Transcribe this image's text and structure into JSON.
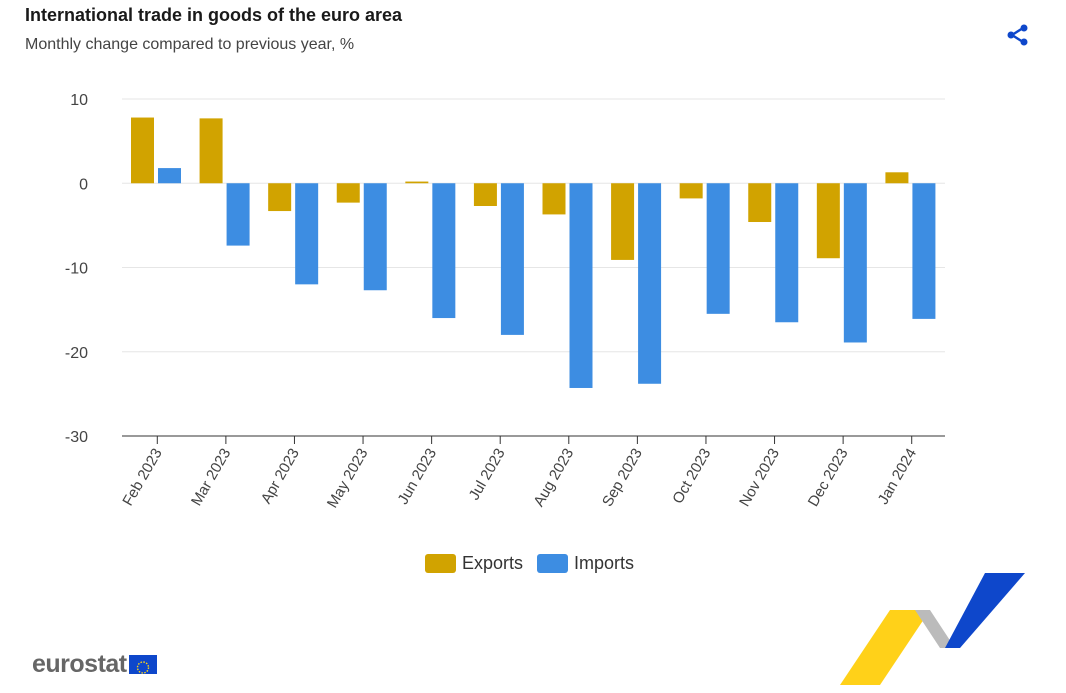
{
  "header": {
    "title": "International trade in goods of the euro area",
    "subtitle": "Monthly change compared to previous year, %"
  },
  "icons": {
    "share": "share-icon"
  },
  "logo": {
    "text": "eurostat"
  },
  "colors": {
    "exports": "#d1a300",
    "imports": "#3d8de2",
    "grid": "#e6e6e6"
  },
  "chart_data": {
    "type": "bar",
    "title": "International trade in goods of the euro area",
    "subtitle": "Monthly change compared to previous year, %",
    "categories": [
      "Feb 2023",
      "Mar 2023",
      "Apr 2023",
      "May 2023",
      "Jun 2023",
      "Jul 2023",
      "Aug 2023",
      "Sep 2023",
      "Oct 2023",
      "Nov 2023",
      "Dec 2023",
      "Jan 2024"
    ],
    "series": [
      {
        "name": "Exports",
        "values": [
          7.8,
          7.7,
          -3.3,
          -2.3,
          0.2,
          -2.7,
          -3.7,
          -9.1,
          -1.8,
          -4.6,
          -8.9,
          1.3
        ]
      },
      {
        "name": "Imports",
        "values": [
          1.8,
          -7.4,
          -12.0,
          -12.7,
          -16.0,
          -18.0,
          -24.3,
          -23.8,
          -15.5,
          -16.5,
          -18.9,
          -16.1
        ]
      }
    ],
    "ylim": [
      -30,
      10
    ],
    "yticks": [
      10,
      0,
      -10,
      -20,
      -30
    ],
    "grid": true,
    "legend": "bottom"
  }
}
